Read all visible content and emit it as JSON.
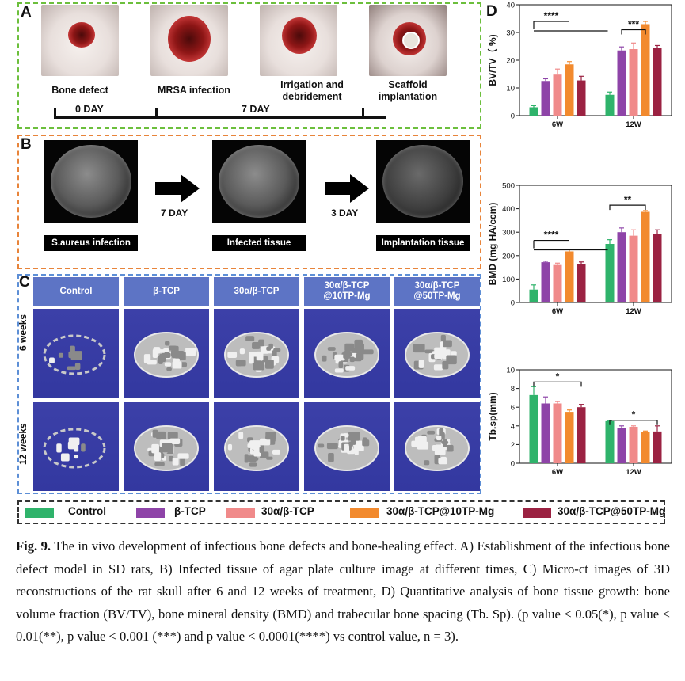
{
  "panelA": {
    "letter": "A",
    "captions": [
      "Bone defect",
      "MRSA infection",
      "Irrigation and debridement",
      "Scaffold implantation"
    ],
    "days": [
      "0 DAY",
      "7 DAY"
    ]
  },
  "panelB": {
    "letter": "B",
    "labels": [
      "S.aureus infection",
      "Infected tissue",
      "Implantation tissue"
    ],
    "days": [
      "7 DAY",
      "3 DAY"
    ]
  },
  "panelC": {
    "letter": "C",
    "headers": [
      "Control",
      "β-TCP",
      "30α/β-TCP",
      "30α/β-TCP\n@10TP-Mg",
      "30α/β-TCP\n@50TP-Mg"
    ],
    "rows": [
      "6 weeks",
      "12 weeks"
    ]
  },
  "panelD": {
    "letter": "D"
  },
  "legend": {
    "items": [
      {
        "label": "Control",
        "color": "#2fb36b"
      },
      {
        "label": "β-TCP",
        "color": "#8e44a8"
      },
      {
        "label": "30α/β-TCP",
        "color": "#f08a8a"
      },
      {
        "label": "30α/β-TCP@10TP-Mg",
        "color": "#f28a2e"
      },
      {
        "label": "30α/β-TCP@50TP-Mg",
        "color": "#9b2242"
      }
    ]
  },
  "caption": {
    "fig": "Fig. 9.",
    "text": "The in vivo development of infectious bone defects and bone-healing effect. A) Establishment of the infectious bone defect model in SD rats, B) Infected tissue of agar plate culture image at different times, C) Micro-ct images of 3D reconstructions of the rat skull after 6 and 12 weeks of treatment, D) Quantitative analysis of bone tissue growth: bone volume fraction (BV/TV), bone mineral density (BMD) and trabecular bone spacing (Tb. Sp). (p value < 0.05(*), p value < 0.01(**), p value < 0.001 (***) and p value < 0.0001(****) vs control value, n = 3)."
  },
  "chart_data": [
    {
      "type": "bar",
      "ylabel": "BV/TV（ %)",
      "categories": [
        "6W",
        "12W"
      ],
      "ylim": [
        0,
        40
      ],
      "yticks": [
        0,
        10,
        20,
        30,
        40
      ],
      "series": [
        {
          "name": "Control",
          "values": [
            3.0,
            7.5
          ],
          "err": [
            0.6,
            1.0
          ]
        },
        {
          "name": "β-TCP",
          "values": [
            12.5,
            23.5
          ],
          "err": [
            0.8,
            1.3
          ]
        },
        {
          "name": "30α/β-TCP",
          "values": [
            14.8,
            24.0
          ],
          "err": [
            2.0,
            2.2
          ]
        },
        {
          "name": "30α/β-TCP@10TP-Mg",
          "values": [
            18.5,
            33.0
          ],
          "err": [
            1.0,
            1.0
          ]
        },
        {
          "name": "30α/β-TCP@50TP-Mg",
          "values": [
            12.7,
            24.3
          ],
          "err": [
            1.5,
            1.0
          ]
        }
      ],
      "annotations": [
        "****",
        "***"
      ]
    },
    {
      "type": "bar",
      "ylabel": "BMD (mg HA/ccm)",
      "categories": [
        "6W",
        "12W"
      ],
      "ylim": [
        0,
        500
      ],
      "yticks": [
        0,
        100,
        200,
        300,
        400,
        500
      ],
      "series": [
        {
          "name": "Control",
          "values": [
            55,
            250
          ],
          "err": [
            20,
            18
          ]
        },
        {
          "name": "β-TCP",
          "values": [
            172,
            300
          ],
          "err": [
            4,
            18
          ]
        },
        {
          "name": "30α/β-TCP",
          "values": [
            160,
            285
          ],
          "err": [
            8,
            25
          ]
        },
        {
          "name": "30α/β-TCP@10TP-Mg",
          "values": [
            218,
            387
          ],
          "err": [
            8,
            5
          ]
        },
        {
          "name": "30α/β-TCP@50TP-Mg",
          "values": [
            165,
            292
          ],
          "err": [
            8,
            18
          ]
        }
      ],
      "annotations": [
        "****",
        "**"
      ]
    },
    {
      "type": "bar",
      "ylabel": "Tb.sp(mm)",
      "categories": [
        "6W",
        "12W"
      ],
      "ylim": [
        0,
        10
      ],
      "yticks": [
        0,
        2,
        4,
        6,
        8,
        10
      ],
      "series": [
        {
          "name": "Control",
          "values": [
            7.3,
            4.5
          ],
          "err": [
            0.9,
            0.05
          ]
        },
        {
          "name": "β-TCP",
          "values": [
            6.4,
            3.8
          ],
          "err": [
            0.7,
            0.2
          ]
        },
        {
          "name": "30α/β-TCP",
          "values": [
            6.4,
            3.9
          ],
          "err": [
            0.2,
            0.1
          ]
        },
        {
          "name": "30α/β-TCP@10TP-Mg",
          "values": [
            5.5,
            3.35
          ],
          "err": [
            0.2,
            0.1
          ]
        },
        {
          "name": "30α/β-TCP@50TP-Mg",
          "values": [
            6.0,
            3.4
          ],
          "err": [
            0.3,
            0.6
          ]
        }
      ],
      "annotations": [
        "*",
        "*"
      ]
    }
  ]
}
